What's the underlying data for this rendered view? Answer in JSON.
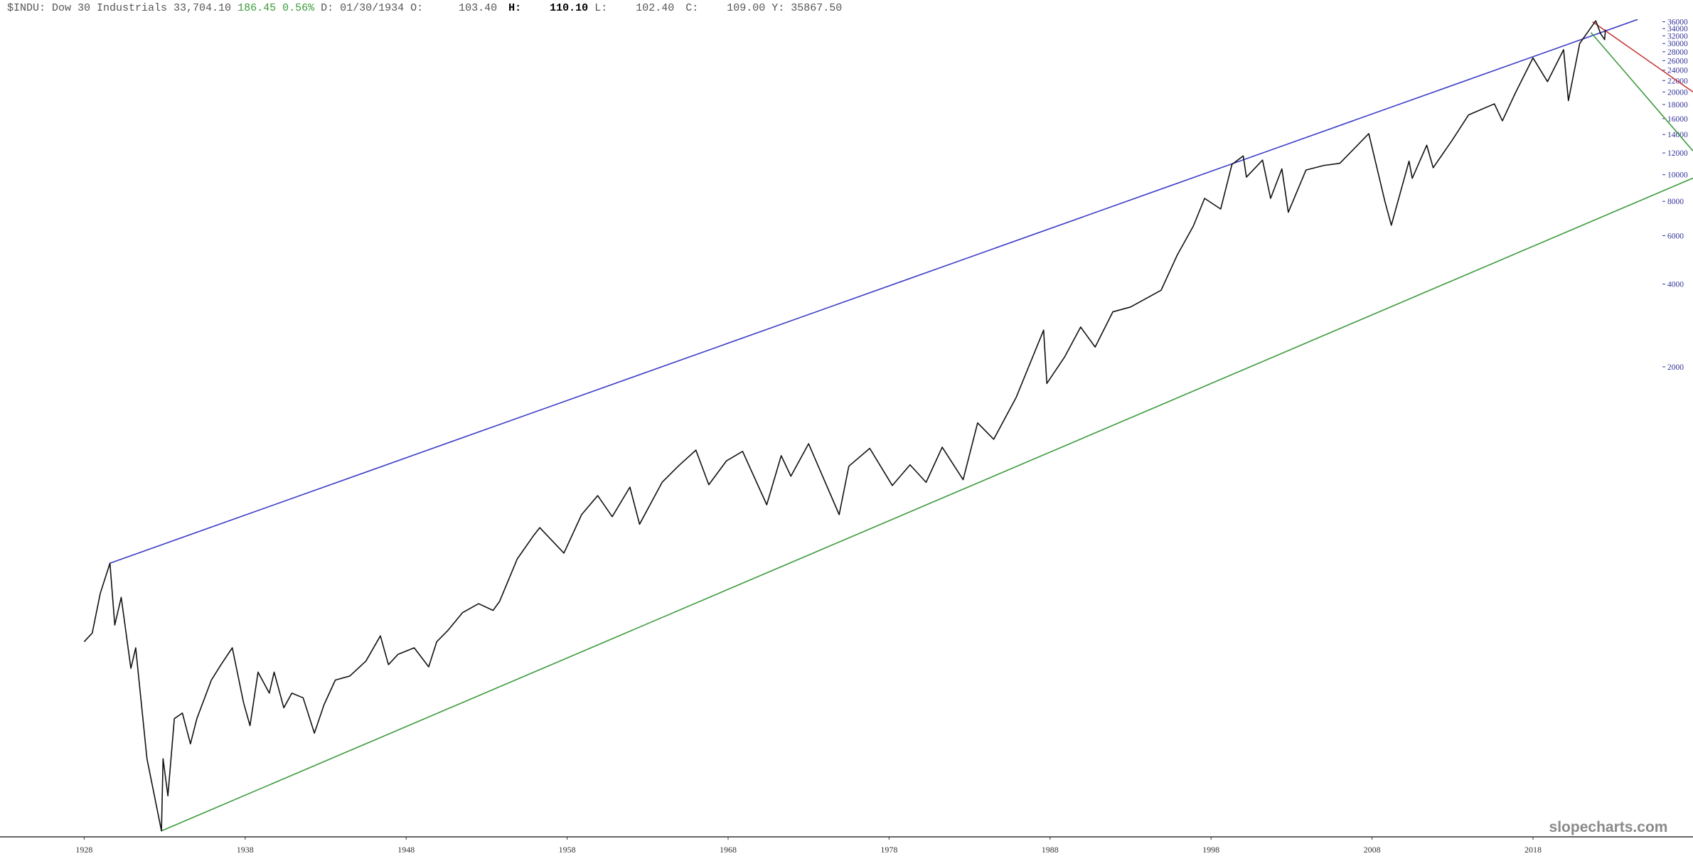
{
  "header": {
    "symbol": "$INDU:",
    "name": "Dow 30 Industrials",
    "last": "33,704.10",
    "change": "186.45",
    "change_pct": "0.56%",
    "date_label": "D:",
    "date": "01/30/1934",
    "open_label": "O:",
    "open": "103.40",
    "high_label": "H:",
    "high": "110.10",
    "low_label": "L:",
    "low": "102.40",
    "close_label": "C:",
    "close": "109.00",
    "y_label": "Y:",
    "y_value": "35867.50"
  },
  "watermark": "slopecharts.com",
  "chart_data": {
    "type": "line",
    "log_scale": true,
    "color": "#111111",
    "x": [
      1928.0,
      1928.5,
      1929.0,
      1929.6,
      1929.9,
      1930.3,
      1930.9,
      1931.2,
      1931.9,
      1932.8,
      1932.9,
      1933.2,
      1933.6,
      1934.1,
      1934.6,
      1935.0,
      1935.9,
      1936.5,
      1937.2,
      1937.9,
      1938.3,
      1938.8,
      1939.5,
      1939.8,
      1940.4,
      1940.9,
      1941.6,
      1942.3,
      1942.9,
      1943.6,
      1944.5,
      1945.5,
      1946.4,
      1946.9,
      1947.5,
      1948.5,
      1949.4,
      1949.9,
      1950.6,
      1951.5,
      1952.5,
      1953.4,
      1953.8,
      1954.9,
      1955.9,
      1956.3,
      1957.8,
      1958.9,
      1959.9,
      1960.8,
      1961.9,
      1962.5,
      1963.9,
      1964.9,
      1966.0,
      1966.8,
      1967.9,
      1968.9,
      1970.4,
      1971.3,
      1971.9,
      1973.0,
      1974.9,
      1975.5,
      1976.8,
      1978.2,
      1979.3,
      1980.3,
      1981.3,
      1982.6,
      1983.5,
      1984.5,
      1985.9,
      1987.6,
      1987.8,
      1988.9,
      1989.9,
      1990.8,
      1991.9,
      1993.0,
      1994.9,
      1995.9,
      1996.9,
      1997.6,
      1998.6,
      1999.3,
      2000.0,
      2000.2,
      2001.2,
      2001.7,
      2002.4,
      2002.8,
      2003.9,
      2005.0,
      2006.0,
      2007.8,
      2008.8,
      2009.2,
      2010.3,
      2010.5,
      2011.4,
      2011.8,
      2013.0,
      2014.0,
      2015.6,
      2016.1,
      2016.9,
      2018.0,
      2018.9,
      2019.9,
      2020.2,
      2020.9,
      2021.9,
      2022.2,
      2022.45,
      2022.5
    ],
    "values": [
      200,
      215,
      300,
      386,
      230,
      290,
      160,
      190,
      75,
      41,
      75,
      55,
      105,
      110,
      85,
      105,
      145,
      165,
      190,
      120,
      99,
      155,
      130,
      155,
      115,
      130,
      125,
      93,
      118,
      145,
      150,
      170,
      210,
      165,
      180,
      190,
      162,
      200,
      220,
      255,
      275,
      260,
      280,
      400,
      485,
      520,
      420,
      580,
      680,
      570,
      730,
      535,
      760,
      870,
      995,
      745,
      910,
      985,
      630,
      950,
      800,
      1050,
      580,
      870,
      1010,
      740,
      880,
      760,
      1020,
      777,
      1250,
      1090,
      1550,
      2720,
      1740,
      2170,
      2790,
      2360,
      3170,
      3300,
      3800,
      5100,
      6500,
      8200,
      7500,
      10900,
      11700,
      9800,
      11300,
      8200,
      10500,
      7300,
      10400,
      10800,
      11000,
      14100,
      8000,
      6550,
      11200,
      9700,
      12800,
      10600,
      13400,
      16500,
      18100,
      15700,
      19800,
      26600,
      21800,
      28500,
      18600,
      30000,
      36300,
      32600,
      31000,
      33700
    ],
    "trendlines": [
      {
        "color": "#3a3ac8",
        "x": [
          1929.6,
          2024.5
        ],
        "y": [
          386,
          36700
        ]
      },
      {
        "color": "#3c9a3c",
        "x": [
          1932.8,
          2027.94
        ],
        "y": [
          41,
          9720
        ]
      },
      {
        "color": "#c83a3a",
        "x": [
          2021.7,
          2027.94
        ],
        "y": [
          36000,
          20000
        ]
      },
      {
        "color": "#3c9a3c",
        "x": [
          2021.6,
          2027.94
        ],
        "y": [
          32900,
          12200
        ]
      }
    ],
    "xlim": [
      1922.77,
      2027.94
    ],
    "ylim": [
      39,
      43200
    ],
    "xticks": [
      1928,
      1938,
      1948,
      1958,
      1968,
      1978,
      1988,
      1998,
      2008,
      2018
    ],
    "yticks": [
      2000,
      4000,
      6000,
      8000,
      10000,
      12000,
      14000,
      16000,
      18000,
      20000,
      22000,
      24000,
      26000,
      28000,
      30000,
      32000,
      34000,
      36000
    ]
  }
}
